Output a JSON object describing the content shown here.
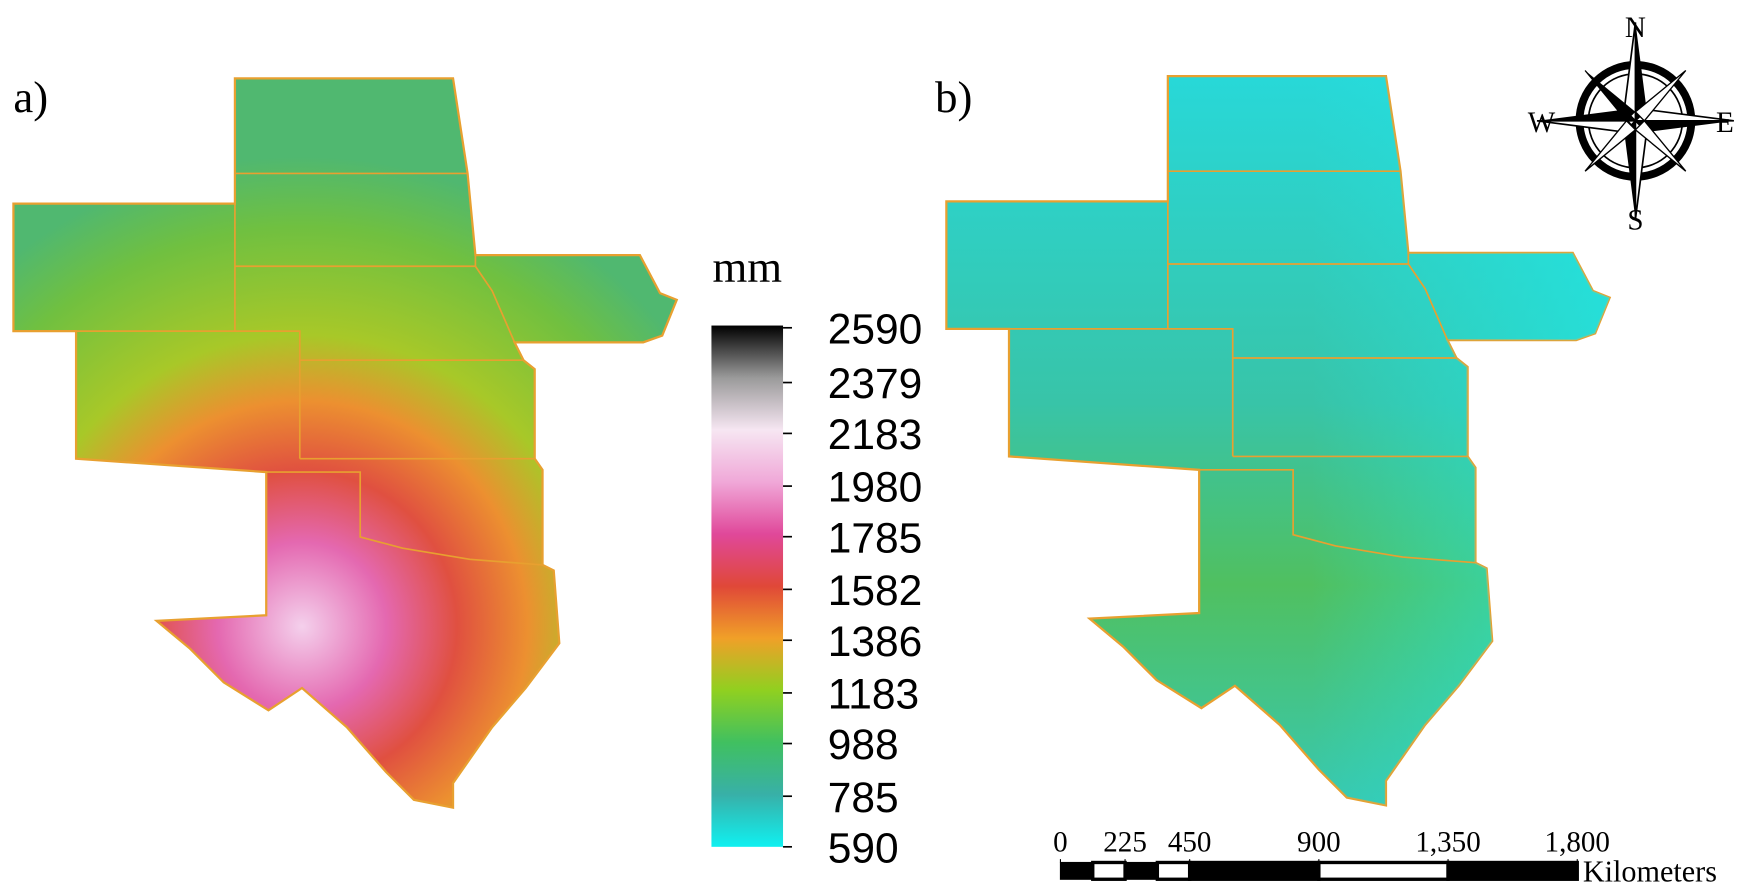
{
  "panels": [
    {
      "label": "a)"
    },
    {
      "label": "b)"
    }
  ],
  "legend": {
    "unit": "mm",
    "ticks": [
      2590,
      2379,
      2183,
      1980,
      1785,
      1582,
      1386,
      1183,
      988,
      785,
      590
    ],
    "colors": [
      "#000000",
      "#9a9a9a",
      "#f6e6f2",
      "#f0a8d8",
      "#e0489a",
      "#e04838",
      "#f0a028",
      "#90d020",
      "#40c060",
      "#38b0a8",
      "#10f0f0"
    ]
  },
  "compass": {
    "north": "N",
    "south": "S",
    "west": "W",
    "east": "E"
  },
  "scale_bar": {
    "ticks": [
      0,
      225,
      450,
      900,
      {
        "value": 1350,
        "label": "1,350"
      },
      {
        "value": 1800,
        "label": "1,800"
      }
    ],
    "unit": "Kilometers"
  }
}
